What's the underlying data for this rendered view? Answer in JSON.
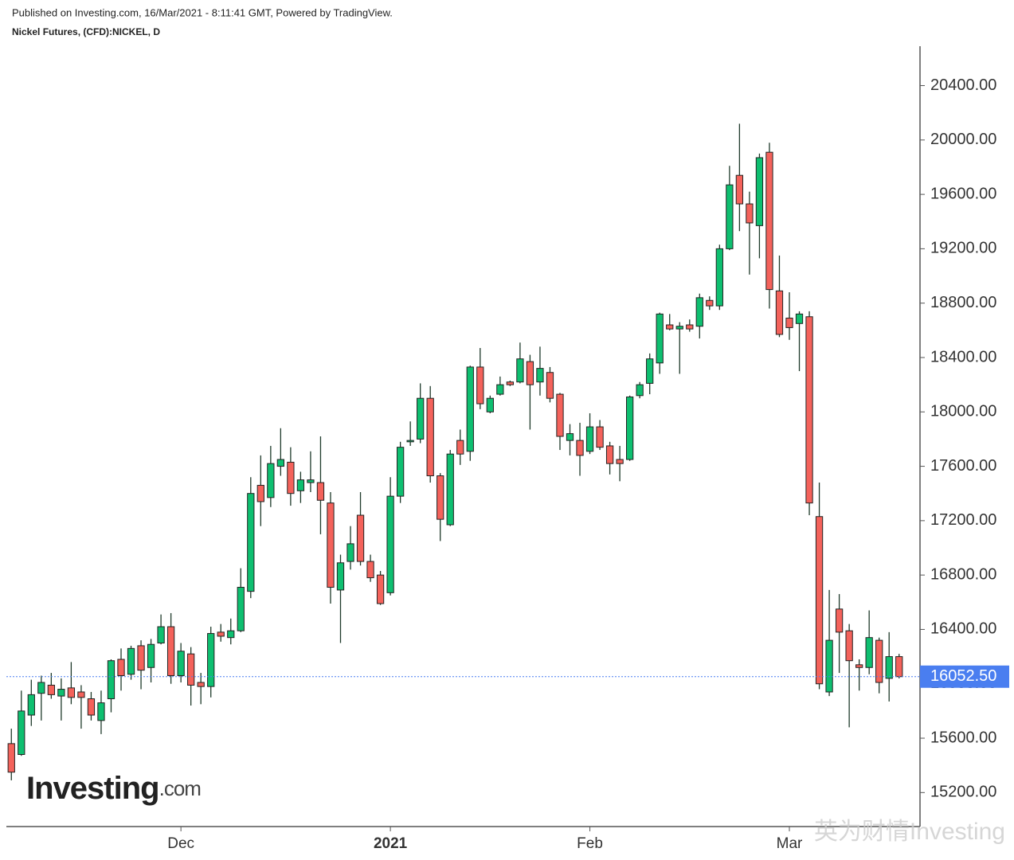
{
  "header": {
    "published": "Published on Investing.com, 16/Mar/2021 - 8:11:41 GMT, Powered by TradingView.",
    "instrument": "Nickel Futures, (CFD):NICKEL, D"
  },
  "logo": {
    "name": "Investing",
    "suffix": ".com"
  },
  "watermark": "英为财情Investing",
  "chart_data": {
    "type": "candlestick",
    "categories": [
      null,
      null,
      null,
      null,
      null,
      null,
      null,
      null,
      null,
      null,
      null,
      null,
      null,
      null,
      null,
      null,
      null,
      "Dec",
      null,
      null,
      null,
      null,
      null,
      null,
      null,
      null,
      null,
      null,
      null,
      null,
      null,
      null,
      null,
      null,
      null,
      null,
      null,
      null,
      "2021",
      null,
      null,
      null,
      null,
      null,
      null,
      null,
      null,
      null,
      null,
      null,
      null,
      null,
      null,
      null,
      null,
      null,
      null,
      null,
      "Feb",
      null,
      null,
      null,
      null,
      null,
      null,
      null,
      null,
      null,
      null,
      null,
      null,
      null,
      null,
      null,
      null,
      null,
      null,
      null,
      "Mar",
      null,
      null,
      null,
      null,
      null,
      null,
      null,
      null,
      null,
      null,
      null
    ],
    "open": [
      15560,
      15480,
      15770,
      15930,
      15990,
      15910,
      15970,
      15940,
      15890,
      15730,
      15890,
      16180,
      16070,
      16280,
      16120,
      16300,
      16420,
      16060,
      16220,
      16010,
      15980,
      16380,
      16340,
      16390,
      16680,
      17460,
      17370,
      17600,
      17630,
      17420,
      17480,
      17480,
      17330,
      16690,
      16900,
      17240,
      16900,
      16800,
      16670,
      17380,
      17780,
      17800,
      18100,
      17530,
      17170,
      17790,
      17710,
      18330,
      18000,
      18130,
      18220,
      18220,
      18370,
      18220,
      18290,
      18130,
      17790,
      17790,
      17710,
      17890,
      17750,
      17650,
      17650,
      18120,
      18210,
      18360,
      18640,
      18610,
      18640,
      18630,
      18820,
      18780,
      19200,
      19740,
      19530,
      19370,
      19910,
      18890,
      18690,
      18650,
      18700,
      17230,
      15940,
      16550,
      16390,
      16140,
      16120,
      16320,
      16040,
      16200
    ],
    "high": [
      15670,
      15950,
      16030,
      16060,
      16080,
      16040,
      16160,
      15990,
      15940,
      15950,
      16180,
      16260,
      16280,
      16320,
      16330,
      16510,
      16520,
      16300,
      16270,
      16080,
      16420,
      16440,
      16480,
      16850,
      17520,
      17680,
      17750,
      17880,
      17740,
      17560,
      17710,
      17820,
      17410,
      16950,
      17160,
      17410,
      16950,
      16830,
      17520,
      17780,
      17930,
      18210,
      18190,
      17550,
      17720,
      17870,
      18340,
      18470,
      18120,
      18260,
      18230,
      18510,
      18420,
      18480,
      18330,
      18140,
      17910,
      17920,
      17990,
      17940,
      17780,
      17750,
      18120,
      18220,
      18430,
      18730,
      18720,
      18660,
      18680,
      18870,
      18850,
      19230,
      19810,
      20120,
      19620,
      19900,
      19980,
      19150,
      18880,
      18740,
      18740,
      17480,
      16690,
      16660,
      16440,
      16180,
      16540,
      16340,
      16380,
      16220
    ],
    "low": [
      15290,
      15470,
      15690,
      15730,
      15890,
      15730,
      15850,
      15670,
      15730,
      15630,
      15790,
      15950,
      16030,
      15960,
      16010,
      16290,
      16000,
      16010,
      15840,
      15850,
      15900,
      16310,
      16290,
      16380,
      16630,
      17160,
      17300,
      17530,
      17310,
      17330,
      17410,
      17100,
      16590,
      16300,
      16840,
      16870,
      16750,
      16580,
      16650,
      17330,
      17750,
      17770,
      17480,
      17050,
      17160,
      17610,
      17640,
      18020,
      17990,
      18120,
      18190,
      18210,
      17870,
      18120,
      18070,
      17720,
      17680,
      17530,
      17690,
      17720,
      17540,
      17490,
      17640,
      18100,
      18130,
      18280,
      18600,
      18280,
      18590,
      18540,
      18750,
      18750,
      19190,
      19330,
      19010,
      19130,
      18760,
      18550,
      18530,
      18300,
      17240,
      15960,
      15910,
      16080,
      15680,
      15950,
      16070,
      15930,
      15870,
      16040
    ],
    "close": [
      15350,
      15800,
      15920,
      16010,
      15920,
      15960,
      15900,
      15900,
      15770,
      15860,
      16170,
      16060,
      16260,
      16100,
      16290,
      16420,
      16060,
      16240,
      15990,
      15980,
      16370,
      16350,
      16390,
      16710,
      17400,
      17340,
      17620,
      17650,
      17400,
      17500,
      17500,
      17350,
      16710,
      16890,
      17030,
      16900,
      16780,
      16590,
      17380,
      17740,
      17790,
      18100,
      17530,
      17210,
      17690,
      17690,
      18330,
      18060,
      18100,
      18200,
      18200,
      18390,
      18200,
      18320,
      18100,
      17820,
      17840,
      17680,
      17890,
      17740,
      17620,
      17620,
      18110,
      18200,
      18390,
      18720,
      18610,
      18630,
      18610,
      18840,
      18780,
      19200,
      19670,
      19530,
      19390,
      19870,
      18900,
      18570,
      18620,
      18720,
      17330,
      16000,
      16320,
      16380,
      16170,
      16120,
      16340,
      16010,
      16200,
      16052.5
    ],
    "up_color": "#0ebf70",
    "down_color": "#f4625b",
    "wick_color": "#1e3a2a",
    "ylim": [
      14950,
      20690
    ],
    "yticks": [
      {
        "value": 15200,
        "label": "15200.00"
      },
      {
        "value": 15600,
        "label": "15600.00"
      },
      {
        "value": 16000,
        "label": "16000.00"
      },
      {
        "value": 16400,
        "label": "16400.00"
      },
      {
        "value": 16800,
        "label": "16800.00"
      },
      {
        "value": 17200,
        "label": "17200.00"
      },
      {
        "value": 17600,
        "label": "17600.00"
      },
      {
        "value": 18000,
        "label": "18000.00"
      },
      {
        "value": 18400,
        "label": "18400.00"
      },
      {
        "value": 18800,
        "label": "18800.00"
      },
      {
        "value": 19200,
        "label": "19200.00"
      },
      {
        "value": 19600,
        "label": "19600.00"
      },
      {
        "value": 20000,
        "label": "20000.00"
      },
      {
        "value": 20400,
        "label": "20400.00"
      }
    ],
    "current_price": {
      "value": 16052.5,
      "label": "16052.50"
    },
    "current_price_color": "#4a7ef0",
    "grid": false
  }
}
